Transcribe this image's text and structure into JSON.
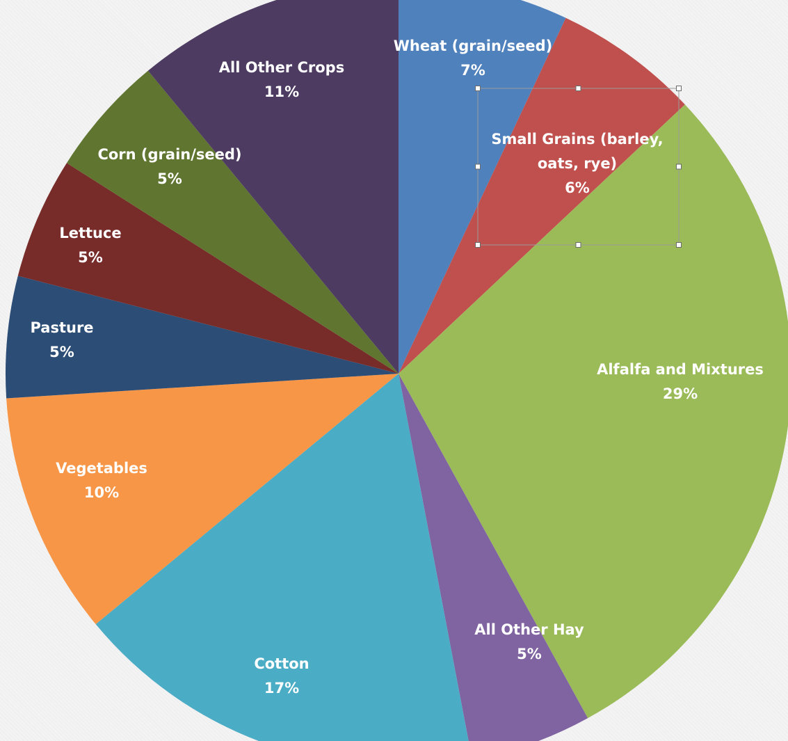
{
  "chart_data": {
    "type": "pie",
    "title": "",
    "slices": [
      {
        "name": "Wheat (grain/seed)",
        "value": 7,
        "label_lines": [
          "Wheat (grain/seed)",
          "7%"
        ],
        "color": "#4f81bd"
      },
      {
        "name": "Small Grains (barley, oats, rye)",
        "value": 6,
        "label_lines": [
          "Small Grains (barley,",
          "oats, rye)",
          "6%"
        ],
        "color": "#c0504d"
      },
      {
        "name": "Alfalfa and Mixtures",
        "value": 29,
        "label_lines": [
          "Alfalfa and Mixtures",
          "29%"
        ],
        "color": "#9bbb59"
      },
      {
        "name": "All Other Hay",
        "value": 5,
        "label_lines": [
          "All Other Hay",
          "5%"
        ],
        "color": "#8064a2"
      },
      {
        "name": "Cotton",
        "value": 17,
        "label_lines": [
          "Cotton",
          "17%"
        ],
        "color": "#4bacc6"
      },
      {
        "name": "Vegetables",
        "value": 10,
        "label_lines": [
          "Vegetables",
          "10%"
        ],
        "color": "#f79646"
      },
      {
        "name": "Pasture",
        "value": 5,
        "label_lines": [
          "Pasture",
          "5%"
        ],
        "color": "#2c4d75"
      },
      {
        "name": "Lettuce",
        "value": 5,
        "label_lines": [
          "Lettuce",
          "5%"
        ],
        "color": "#772c2a"
      },
      {
        "name": "Corn (grain/seed)",
        "value": 5,
        "label_lines": [
          "Corn (grain/seed)",
          "5%"
        ],
        "color": "#5f7530"
      },
      {
        "name": "All Other Crops",
        "value": 11,
        "label_lines": [
          "All Other Crops",
          "11%"
        ],
        "color": "#4d3b62"
      }
    ],
    "label_color": "#ffffff",
    "selected_label": "Small Grains (barley, oats, rye)"
  }
}
